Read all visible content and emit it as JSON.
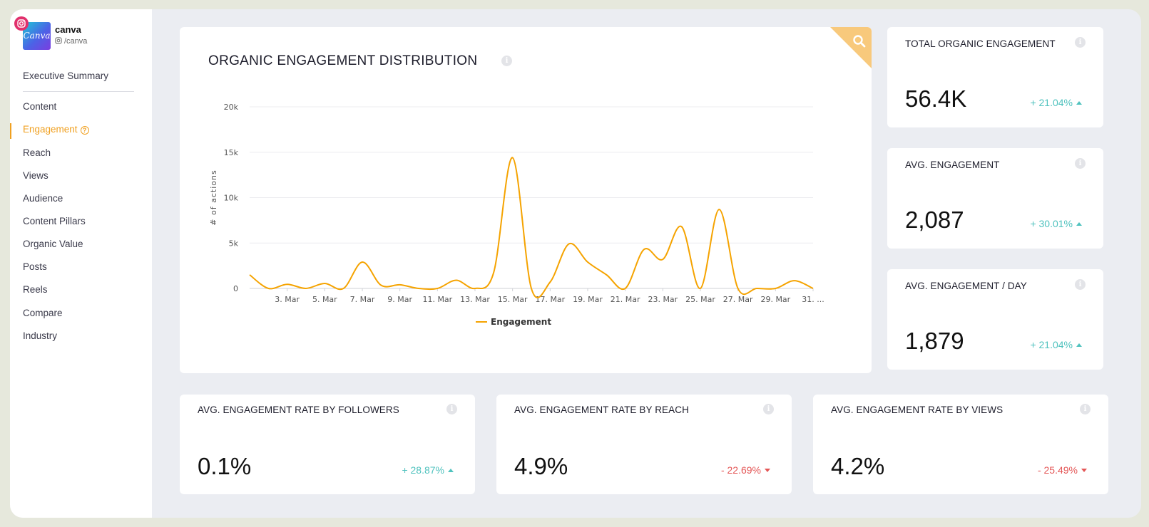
{
  "profile": {
    "name": "canva",
    "handle": "/canva",
    "avatar_text": "Canva"
  },
  "sidebar": {
    "items": [
      {
        "label": "Executive Summary"
      },
      {
        "label": "Content"
      },
      {
        "label": "Engagement",
        "active": true
      },
      {
        "label": "Reach"
      },
      {
        "label": "Views"
      },
      {
        "label": "Audience"
      },
      {
        "label": "Content Pillars"
      },
      {
        "label": "Organic Value"
      },
      {
        "label": "Posts"
      },
      {
        "label": "Reels"
      },
      {
        "label": "Compare"
      },
      {
        "label": "Industry"
      }
    ],
    "help_glyph": "?"
  },
  "main_card": {
    "title": "ORGANIC ENGAGEMENT DISTRIBUTION",
    "corner_icon": "search-icon"
  },
  "info_glyph": "i",
  "kpis": [
    {
      "title": "TOTAL ORGANIC ENGAGEMENT",
      "value": "56.4K",
      "delta": "+ 21.04%",
      "direction": "up"
    },
    {
      "title": "AVG. ENGAGEMENT",
      "value": "2,087",
      "delta": "+ 30.01%",
      "direction": "up"
    },
    {
      "title": "AVG. ENGAGEMENT / DAY",
      "value": "1,879",
      "delta": "+ 21.04%",
      "direction": "up"
    },
    {
      "title": "AVG. ENGAGEMENT RATE BY FOLLOWERS",
      "value": "0.1%",
      "delta": "+ 28.87%",
      "direction": "up"
    },
    {
      "title": "AVG. ENGAGEMENT RATE BY REACH",
      "value": "4.9%",
      "delta": "- 22.69%",
      "direction": "down"
    },
    {
      "title": "AVG. ENGAGEMENT RATE BY VIEWS",
      "value": "4.2%",
      "delta": "- 25.49%",
      "direction": "down"
    }
  ],
  "colors": {
    "accent": "#f0a020",
    "positive": "#4fc2be",
    "negative": "#e45757",
    "line": "#f5a300",
    "corner": "#f8c97c"
  },
  "chart_data": {
    "type": "line",
    "title": "ORGANIC ENGAGEMENT DISTRIBUTION",
    "ylabel": "# of actions",
    "xlabel": "",
    "ylim": [
      0,
      20000
    ],
    "y_ticks": [
      "0",
      "5k",
      "10k",
      "15k",
      "20k"
    ],
    "y_tick_values": [
      0,
      5000,
      10000,
      15000,
      20000
    ],
    "x_tick_labels": [
      "3. Mar",
      "5. Mar",
      "7. Mar",
      "9. Mar",
      "11. Mar",
      "13. Mar",
      "15. Mar",
      "17. Mar",
      "19. Mar",
      "21. Mar",
      "23. Mar",
      "25. Mar",
      "27. Mar",
      "29. Mar",
      "31. ..."
    ],
    "x": [
      1,
      2,
      3,
      4,
      5,
      6,
      7,
      8,
      9,
      10,
      11,
      12,
      13,
      14,
      15,
      16,
      17,
      18,
      19,
      20,
      21,
      22,
      23,
      24,
      25,
      26,
      27,
      28,
      29,
      30,
      31
    ],
    "series": [
      {
        "name": "Engagement",
        "values": [
          1500,
          0,
          450,
          0,
          550,
          0,
          2900,
          350,
          400,
          0,
          0,
          900,
          0,
          1800,
          14400,
          0,
          700,
          4900,
          2900,
          1500,
          0,
          4300,
          3200,
          6800,
          0,
          8700,
          0,
          0,
          0,
          850,
          0
        ]
      }
    ],
    "legend_position": "bottom-center",
    "grid": true
  }
}
